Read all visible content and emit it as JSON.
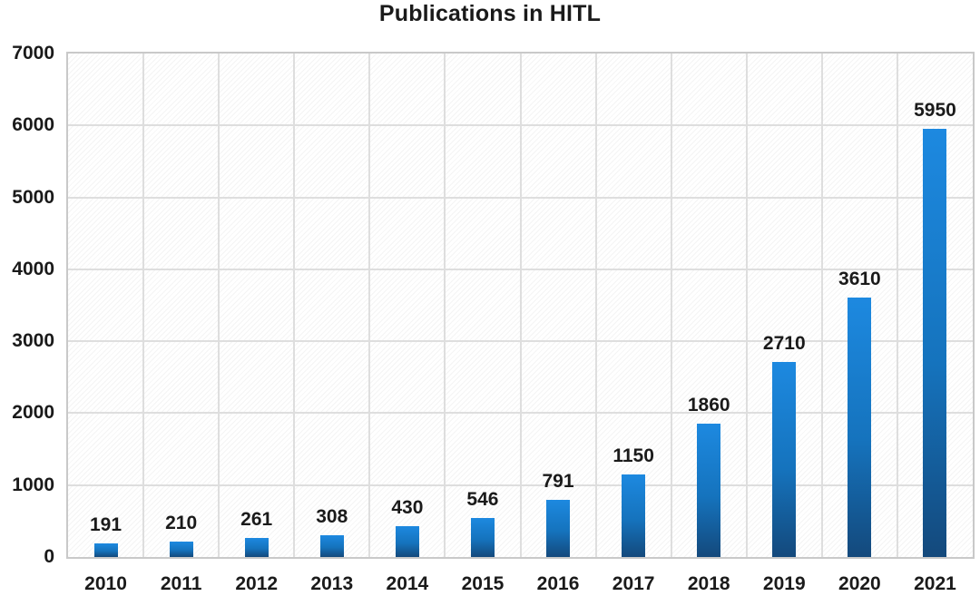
{
  "chart_data": {
    "type": "bar",
    "title": "Publications in HITL",
    "categories": [
      "2010",
      "2011",
      "2012",
      "2013",
      "2014",
      "2015",
      "2016",
      "2017",
      "2018",
      "2019",
      "2020",
      "2021"
    ],
    "values": [
      191,
      210,
      261,
      308,
      430,
      546,
      791,
      1150,
      1860,
      2710,
      3610,
      5950
    ],
    "xlabel": "",
    "ylabel": "",
    "ylim": [
      0,
      7000
    ],
    "yticks": [
      0,
      1000,
      2000,
      3000,
      4000,
      5000,
      6000,
      7000
    ],
    "grid": true,
    "legend_position": "none",
    "bar_value_labels_shown": true,
    "colors": {
      "bar_gradient_top": "#1d89e0",
      "bar_gradient_mid": "#1573bd",
      "bar_gradient_bottom": "#14497c",
      "gridline": "#dedede",
      "plot_border": "#c9c9c9",
      "text": "#1a1a1a",
      "plot_background": "#ffffff"
    }
  }
}
